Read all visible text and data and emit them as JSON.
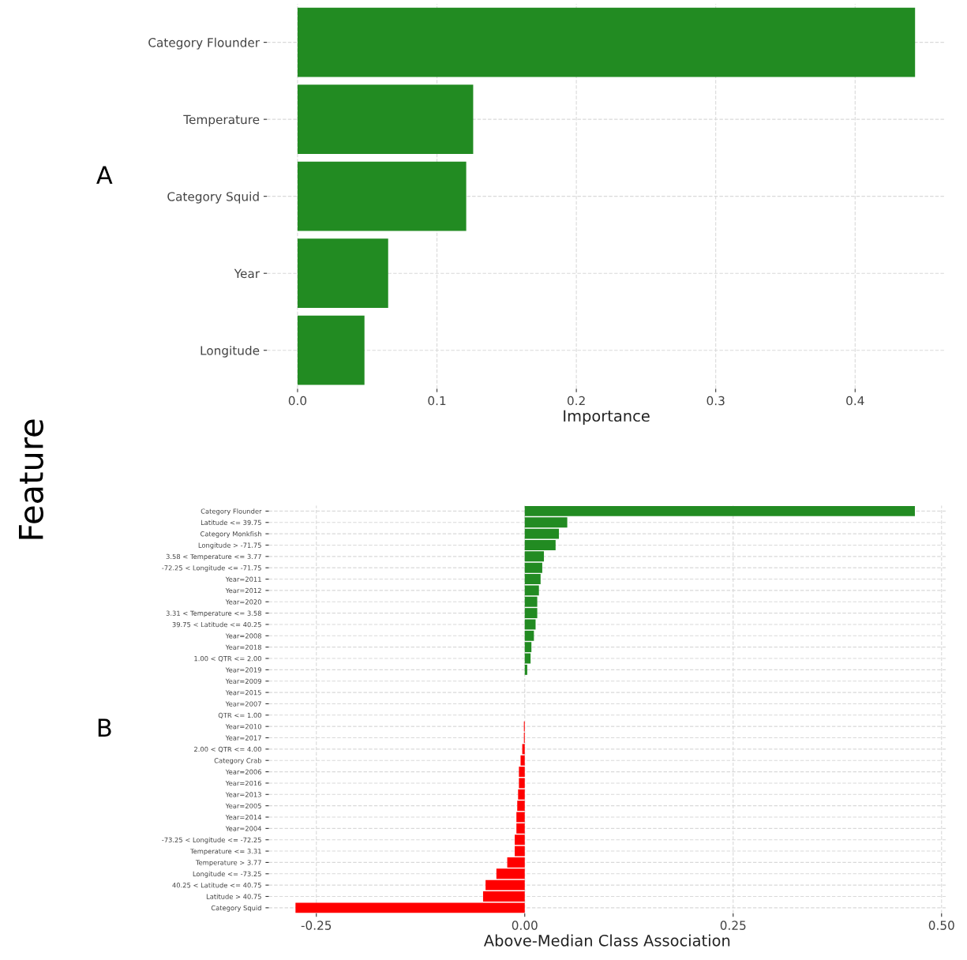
{
  "chart_data": [
    {
      "type": "bar",
      "orientation": "horizontal",
      "xlabel": "Importance",
      "annotations": [
        "A"
      ],
      "grid": true,
      "categories": [
        "Category Flounder",
        "Temperature",
        "Category Squid",
        "Year",
        "Longitude"
      ],
      "values": [
        0.443,
        0.126,
        0.121,
        0.065,
        0.048
      ],
      "colors": [
        "#228b22",
        "#228b22",
        "#228b22",
        "#228b22",
        "#228b22"
      ],
      "xlim": [
        -0.022,
        0.465
      ],
      "xticks": [
        {
          "value": 0,
          "label": "0.0"
        },
        0.1,
        0.2,
        0.3,
        0.4
      ]
    },
    {
      "type": "bar",
      "orientation": "horizontal",
      "xlabel": "Above-Median Class Association",
      "ylabel": "Feature",
      "annotations": [
        "B"
      ],
      "grid": true,
      "categories": [
        "Category Flounder",
        "Latitude <= 39.75",
        "Category Monkfish",
        "Longitude > -71.75",
        "3.58 < Temperature <= 3.77",
        "-72.25 < Longitude <= -71.75",
        "Year=2011",
        "Year=2012",
        "Year=2020",
        "3.31 < Temperature <= 3.58",
        "39.75 < Latitude <= 40.25",
        "Year=2008",
        "Year=2018",
        "1.00 < QTR <= 2.00",
        "Year=2019",
        "Year=2009",
        "Year=2015",
        "Year=2007",
        "QTR <= 1.00",
        "Year=2010",
        "Year=2017",
        "2.00 < QTR <= 4.00",
        "Category Crab",
        "Year=2006",
        "Year=2016",
        "Year=2013",
        "Year=2005",
        "Year=2014",
        "Year=2004",
        "-73.25 < Longitude <= -72.25",
        "Temperature <= 3.31",
        "Temperature > 3.77",
        "Longitude <= -73.25",
        "40.25 < Latitude <= 40.75",
        "Latitude > 40.75",
        "Category Squid"
      ],
      "values": [
        0.468,
        0.051,
        0.041,
        0.037,
        0.023,
        0.021,
        0.019,
        0.017,
        0.015,
        0.015,
        0.013,
        0.011,
        0.008,
        0.007,
        0.003,
        0,
        0,
        0,
        0,
        -0.001,
        -0.001,
        -0.003,
        -0.005,
        -0.007,
        -0.007,
        -0.008,
        -0.009,
        -0.01,
        -0.01,
        -0.012,
        -0.012,
        -0.021,
        -0.034,
        -0.047,
        -0.05,
        -0.275
      ],
      "colors": [
        "#228b22",
        "#228b22",
        "#228b22",
        "#228b22",
        "#228b22",
        "#228b22",
        "#228b22",
        "#228b22",
        "#228b22",
        "#228b22",
        "#228b22",
        "#228b22",
        "#228b22",
        "#228b22",
        "#228b22",
        "#228b22",
        "#228b22",
        "#228b22",
        "#228b22",
        "#ff0000",
        "#ff0000",
        "#ff0000",
        "#ff0000",
        "#ff0000",
        "#ff0000",
        "#ff0000",
        "#ff0000",
        "#ff0000",
        "#ff0000",
        "#ff0000",
        "#ff0000",
        "#ff0000",
        "#ff0000",
        "#ff0000",
        "#ff0000",
        "#ff0000"
      ],
      "xlim": [
        -0.307,
        0.505
      ],
      "xticks": [
        {
          "value": -0.25,
          "label": "-0.25"
        },
        {
          "value": 0,
          "label": "0.00"
        },
        0.25,
        {
          "value": 0.5,
          "label": "0.50"
        }
      ]
    }
  ]
}
